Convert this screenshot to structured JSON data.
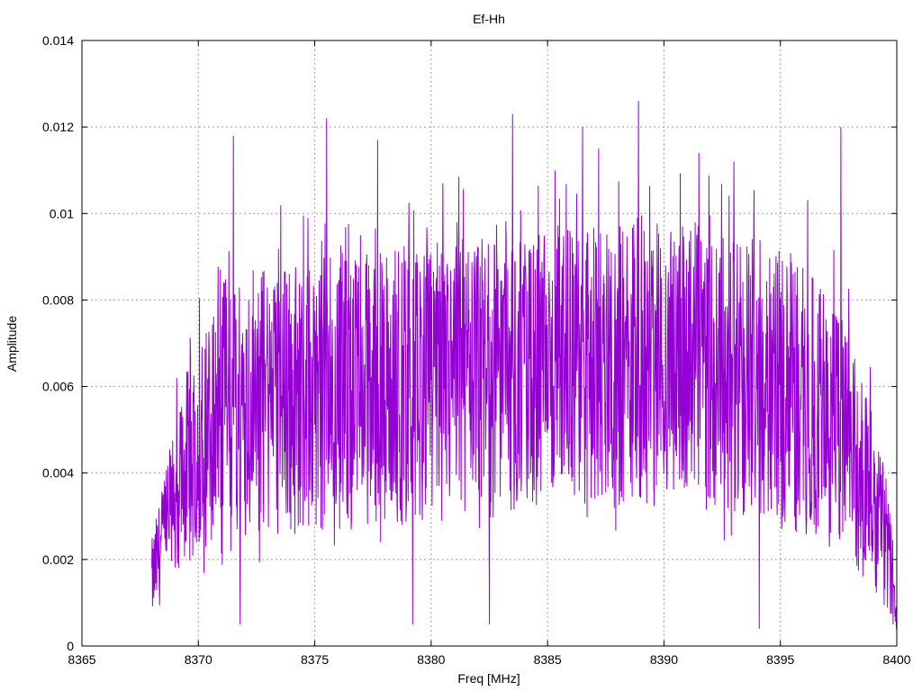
{
  "chart_data": {
    "type": "line",
    "title": "Ef-Hh",
    "xlabel": "Freq [MHz]",
    "ylabel": "Amplitude",
    "xlim": [
      8365,
      8400
    ],
    "ylim": [
      0,
      0.014
    ],
    "x_ticks": [
      "8365",
      "8370",
      "8375",
      "8380",
      "8385",
      "8390",
      "8395",
      "8400"
    ],
    "y_ticks": [
      "0",
      "0.002",
      "0.004",
      "0.006",
      "0.008",
      "0.01",
      "0.012",
      "0.014"
    ],
    "grid": true,
    "legend": "none",
    "series": [
      {
        "color": "#9400d3",
        "x_start": 8368.0,
        "x_end": 8400.0,
        "envelope": {
          "description_points_x": [
            8368.0,
            8369.0,
            8370.0,
            8371.0,
            8372.0,
            8373.0,
            8375.0,
            8378.0,
            8380.0,
            8383.0,
            8385.0,
            8387.0,
            8389.0,
            8391.0,
            8393.0,
            8395.0,
            8396.5,
            8397.5,
            8398.5,
            8399.5,
            8400.0
          ],
          "mean": [
            0.0015,
            0.0035,
            0.0048,
            0.0055,
            0.0058,
            0.0057,
            0.0058,
            0.006,
            0.0061,
            0.0062,
            0.0063,
            0.0065,
            0.0066,
            0.0065,
            0.0063,
            0.006,
            0.0056,
            0.005,
            0.004,
            0.0025,
            0.001
          ],
          "spread": [
            0.0008,
            0.0015,
            0.0022,
            0.0025,
            0.0027,
            0.0026,
            0.0027,
            0.0027,
            0.0027,
            0.0027,
            0.0027,
            0.0028,
            0.0028,
            0.0028,
            0.0027,
            0.0027,
            0.0026,
            0.0024,
            0.002,
            0.0013,
            0.0006
          ]
        },
        "peaks": [
          {
            "x": 8371.5,
            "y": 0.0118
          },
          {
            "x": 8375.5,
            "y": 0.0122
          },
          {
            "x": 8377.7,
            "y": 0.0117
          },
          {
            "x": 8380.5,
            "y": 0.0107
          },
          {
            "x": 8383.5,
            "y": 0.0123
          },
          {
            "x": 8386.5,
            "y": 0.012
          },
          {
            "x": 8387.2,
            "y": 0.0115
          },
          {
            "x": 8388.9,
            "y": 0.0126
          },
          {
            "x": 8391.5,
            "y": 0.0114
          },
          {
            "x": 8393.0,
            "y": 0.0112
          },
          {
            "x": 8397.6,
            "y": 0.012
          }
        ],
        "troughs": [
          {
            "x": 8371.8,
            "y": 0.0005
          },
          {
            "x": 8379.2,
            "y": 0.0005
          },
          {
            "x": 8382.5,
            "y": 0.0005
          },
          {
            "x": 8394.1,
            "y": 0.0004
          },
          {
            "x": 8400.0,
            "y": 0.0005
          }
        ]
      }
    ]
  }
}
